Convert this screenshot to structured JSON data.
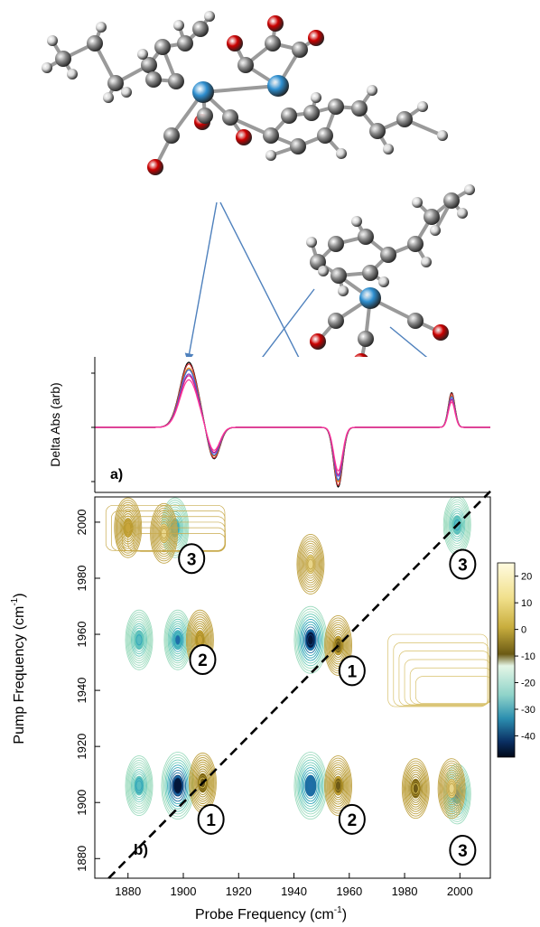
{
  "colors": {
    "carbon": "#8c8c8c",
    "hydrogen": "#d6d6d6",
    "oxygen": "#cc0000",
    "metal": "#2e8fd0",
    "arrow": "#4f81bd",
    "diagonal": "#000000"
  },
  "chart_data": [
    {
      "id": "a",
      "type": "line",
      "panel_label": "a)",
      "title": "",
      "ylabel": "Delta Abs (arb)",
      "xlabel": "",
      "xlim": [
        1868,
        2011
      ],
      "ylim": [
        -0.6,
        0.65
      ],
      "grid": false,
      "legend": "none",
      "series_colors": [
        "#000000",
        "#cc3333",
        "#e07b00",
        "#3366cc",
        "#8844cc",
        "#cc2288",
        "#ff3399"
      ],
      "peaks": [
        {
          "x": 1902,
          "y": 0.6,
          "width": 3.2
        },
        {
          "x": 1911,
          "y": -0.3,
          "width": 2.2
        },
        {
          "x": 1956,
          "y": -0.55,
          "width": 1.6
        },
        {
          "x": 1997,
          "y": 0.32,
          "width": 1.2
        }
      ]
    },
    {
      "id": "b",
      "type": "heatmap",
      "panel_label": "b)",
      "xlabel": "Probe Frequency (cm",
      "xlabel_sup": "-1",
      "xlabel_end": ")",
      "ylabel": "Pump Frequency (cm",
      "ylabel_sup": "-1",
      "ylabel_end": ")",
      "xlim": [
        1868,
        2011
      ],
      "ylim": [
        1873,
        2009
      ],
      "xticks": [
        1880,
        1900,
        1920,
        1940,
        1960,
        1980,
        2000
      ],
      "xtick_labels": [
        "1880",
        "1900",
        "1920",
        "1940",
        "1960",
        "1980",
        "2000"
      ],
      "yticks": [
        1880,
        1900,
        1920,
        1940,
        1960,
        1980,
        2000
      ],
      "ytick_labels": [
        "1880",
        "1900",
        "1920",
        "1940",
        "1960",
        "1980",
        "2000"
      ],
      "colorbar": {
        "ticks": [
          20,
          10,
          0,
          -10,
          -20,
          -30,
          -40
        ],
        "tick_labels": [
          "20",
          "10",
          "0",
          "-10",
          "-20",
          "-30",
          "-40"
        ],
        "range": [
          -48,
          25
        ]
      },
      "diagonal": true,
      "peaks": [
        {
          "x": 1884,
          "y": 1906,
          "amp": -22
        },
        {
          "x": 1898,
          "y": 1906,
          "amp": -45
        },
        {
          "x": 1907,
          "y": 1907,
          "amp": 14
        },
        {
          "x": 1884,
          "y": 1958,
          "amp": -20
        },
        {
          "x": 1898,
          "y": 1958,
          "amp": -28
        },
        {
          "x": 1906,
          "y": 1958,
          "amp": 10
        },
        {
          "x": 1946,
          "y": 1906,
          "amp": -35
        },
        {
          "x": 1956,
          "y": 1906,
          "amp": 12
        },
        {
          "x": 1946,
          "y": 1958,
          "amp": -42
        },
        {
          "x": 1956,
          "y": 1956,
          "amp": 12
        },
        {
          "x": 1999,
          "y": 1903,
          "amp": -28
        },
        {
          "x": 1997,
          "y": 1905,
          "amp": 4
        },
        {
          "x": 1984,
          "y": 1905,
          "amp": 14
        },
        {
          "x": 1897,
          "y": 1998,
          "amp": -22
        },
        {
          "x": 1893,
          "y": 1996,
          "amp": 4
        },
        {
          "x": 1999,
          "y": 1999,
          "amp": -20
        },
        {
          "x": 1880,
          "y": 1998,
          "amp": 8
        },
        {
          "x": 1946,
          "y": 1985,
          "amp": 3
        }
      ],
      "peak_labels": [
        {
          "text": "3",
          "x": 1903,
          "y": 1987
        },
        {
          "text": "3",
          "x": 2001,
          "y": 1985
        },
        {
          "text": "2",
          "x": 1907,
          "y": 1951
        },
        {
          "text": "1",
          "x": 1961,
          "y": 1947
        },
        {
          "text": "1",
          "x": 1910,
          "y": 1894
        },
        {
          "text": "2",
          "x": 1961,
          "y": 1894
        },
        {
          "text": "3",
          "x": 2001,
          "y": 1883
        }
      ]
    }
  ]
}
